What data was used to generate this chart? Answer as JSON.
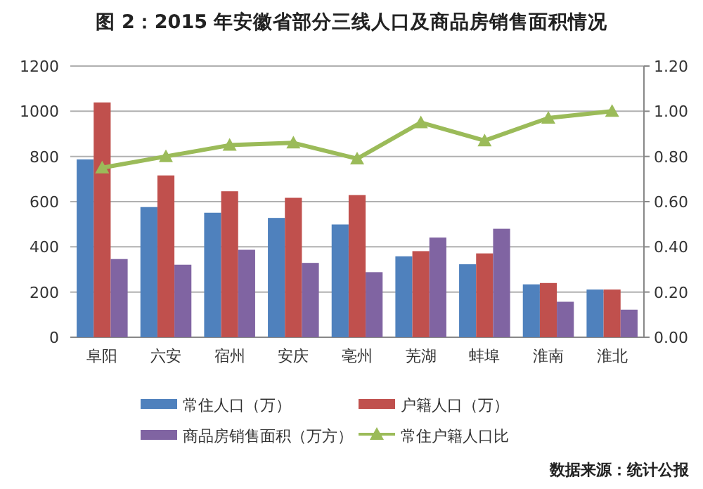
{
  "chart_data": {
    "type": "bar",
    "title": "图 2：2015 年安徽省部分三线人口及商品房销售面积情况",
    "categories": [
      "阜阳",
      "六安",
      "宿州",
      "安庆",
      "亳州",
      "芜湖",
      "蚌埠",
      "淮南",
      "淮北"
    ],
    "series": [
      {
        "name": "常住人口（万）",
        "color": "#4f81bd",
        "values": [
          787,
          576,
          551,
          528,
          499,
          358,
          323,
          234,
          211
        ]
      },
      {
        "name": "户籍人口（万）",
        "color": "#c0504d",
        "values": [
          1039,
          716,
          646,
          617,
          629,
          381,
          371,
          240,
          211
        ]
      },
      {
        "name": "商品房销售面积（万方）",
        "color": "#8064a2",
        "values": [
          346,
          321,
          387,
          329,
          288,
          441,
          480,
          157,
          122
        ]
      },
      {
        "name": "常住户籍人口比",
        "color": "#9bbb59",
        "type": "line",
        "axis": "y2",
        "marker": "triangle",
        "values": [
          0.75,
          0.8,
          0.85,
          0.86,
          0.79,
          0.95,
          0.87,
          0.97,
          1.0
        ]
      }
    ],
    "ylim": [
      0,
      1200
    ],
    "yticks": [
      0,
      200,
      400,
      600,
      800,
      1000,
      1200
    ],
    "y2lim": [
      0,
      1.2
    ],
    "y2ticks": [
      {
        "value": 0,
        "label": "0.00"
      },
      {
        "value": 0.2,
        "label": "0.20"
      },
      {
        "value": 0.4,
        "label": "0.40"
      },
      {
        "value": 0.6,
        "label": "0.60"
      },
      {
        "value": 0.8,
        "label": "0.80"
      },
      {
        "value": 1.0,
        "label": "1.00"
      },
      {
        "value": 1.2,
        "label": "1.20"
      }
    ],
    "grid": "y",
    "legend": "bottom",
    "annotations": [
      "数据来源：统计公报"
    ]
  }
}
